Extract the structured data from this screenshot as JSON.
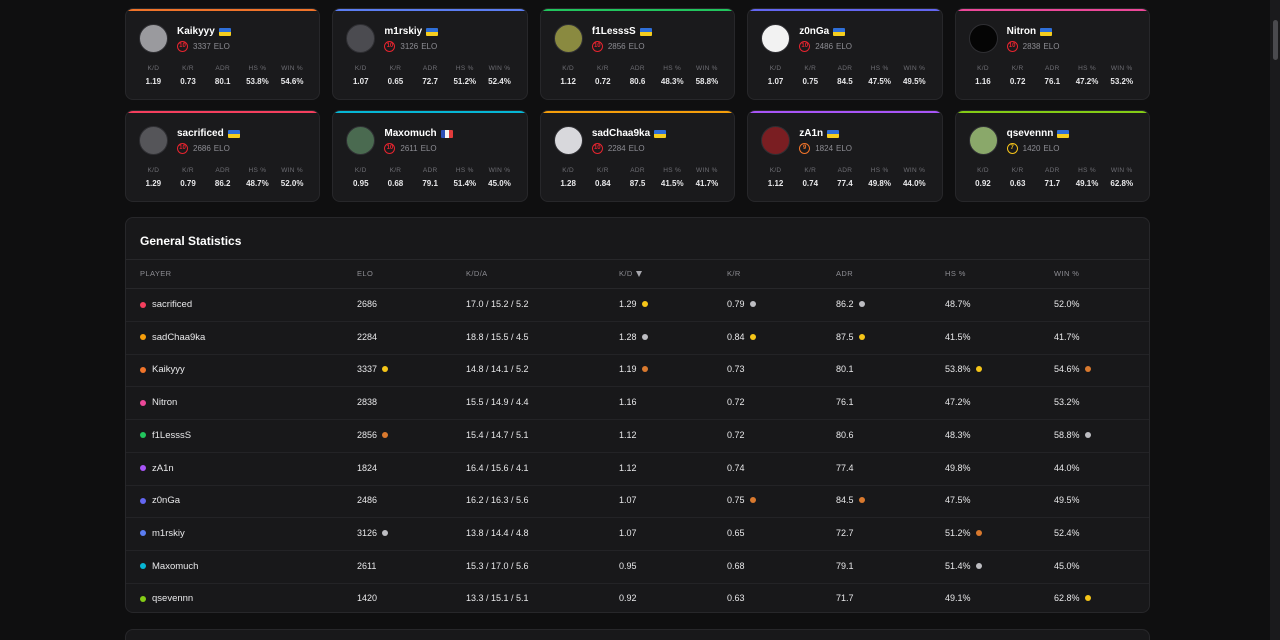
{
  "stat_labels": [
    "K/D",
    "K/R",
    "ADR",
    "HS %",
    "WIN %"
  ],
  "elo_suffix": "ELO",
  "cards": [
    {
      "name": "Kaikyyy",
      "flag": "ua",
      "level": "10",
      "elo": "3337",
      "accent": "#f0742a",
      "avatar_color": "#9a9a9e",
      "kd": "1.19",
      "kr": "0.73",
      "adr": "80.1",
      "hs": "53.8%",
      "win": "54.6%"
    },
    {
      "name": "m1rskiy",
      "flag": "ua",
      "level": "10",
      "elo": "3126",
      "accent": "#5b7df2",
      "avatar_color": "#4b4b50",
      "kd": "1.07",
      "kr": "0.65",
      "adr": "72.7",
      "hs": "51.2%",
      "win": "52.4%"
    },
    {
      "name": "f1LesssS",
      "flag": "ua",
      "level": "10",
      "elo": "2856",
      "accent": "#22c55e",
      "avatar_color": "#8a8a40",
      "kd": "1.12",
      "kr": "0.72",
      "adr": "80.6",
      "hs": "48.3%",
      "win": "58.8%"
    },
    {
      "name": "z0nGa",
      "flag": "ua",
      "level": "10",
      "elo": "2486",
      "accent": "#6366f1",
      "avatar_color": "#f2f2f2",
      "kd": "1.07",
      "kr": "0.75",
      "adr": "84.5",
      "hs": "47.5%",
      "win": "49.5%"
    },
    {
      "name": "Nitron",
      "flag": "ua",
      "level": "10",
      "elo": "2838",
      "accent": "#ec4899",
      "avatar_color": "#050505",
      "kd": "1.16",
      "kr": "0.72",
      "adr": "76.1",
      "hs": "47.2%",
      "win": "53.2%"
    },
    {
      "name": "sacrificed",
      "flag": "ua",
      "level": "10",
      "elo": "2686",
      "accent": "#f43f5e",
      "avatar_color": "#555559",
      "kd": "1.29",
      "kr": "0.79",
      "adr": "86.2",
      "hs": "48.7%",
      "win": "52.0%"
    },
    {
      "name": "Maxomuch",
      "flag": "fr",
      "level": "10",
      "elo": "2611",
      "accent": "#06b6d4",
      "avatar_color": "#4a6a50",
      "kd": "0.95",
      "kr": "0.68",
      "adr": "79.1",
      "hs": "51.4%",
      "win": "45.0%"
    },
    {
      "name": "sadChaa9ka",
      "flag": "ua",
      "level": "10",
      "elo": "2284",
      "accent": "#f59e0b",
      "avatar_color": "#d8d8dc",
      "kd": "1.28",
      "kr": "0.84",
      "adr": "87.5",
      "hs": "41.5%",
      "win": "41.7%"
    },
    {
      "name": "zA1n",
      "flag": "ua",
      "level": "9",
      "elo": "1824",
      "accent": "#a855f7",
      "avatar_color": "#7a1e22",
      "kd": "1.12",
      "kr": "0.74",
      "adr": "77.4",
      "hs": "49.8%",
      "win": "44.0%"
    },
    {
      "name": "qsevennn",
      "flag": "ua",
      "level": "7",
      "elo": "1420",
      "accent": "#84cc16",
      "avatar_color": "#8aa86a",
      "kd": "0.92",
      "kr": "0.63",
      "adr": "71.7",
      "hs": "49.1%",
      "win": "62.8%"
    }
  ],
  "general": {
    "title": "General Statistics",
    "headers": {
      "player": "PLAYER",
      "elo": "ELO",
      "kda": "K/D/A",
      "kd": "K/D",
      "kr": "K/R",
      "adr": "ADR",
      "hs": "HS %",
      "win": "WIN %"
    },
    "rows": [
      {
        "name": "sacrificed",
        "color": "#f43f5e",
        "elo": "2686",
        "kda": "17.0 / 15.2 / 5.2",
        "kd": "1.29",
        "kd_m": "gold",
        "kr": "0.79",
        "kr_m": "silver",
        "adr": "86.2",
        "adr_m": "silver",
        "hs": "48.7%",
        "win": "52.0%"
      },
      {
        "name": "sadChaa9ka",
        "color": "#f59e0b",
        "elo": "2284",
        "kda": "18.8 / 15.5 / 4.5",
        "kd": "1.28",
        "kd_m": "silver",
        "kr": "0.84",
        "kr_m": "gold",
        "adr": "87.5",
        "adr_m": "gold",
        "hs": "41.5%",
        "win": "41.7%"
      },
      {
        "name": "Kaikyyy",
        "color": "#f0742a",
        "elo": "3337",
        "elo_m": "gold",
        "kda": "14.8 / 14.1 / 5.2",
        "kd": "1.19",
        "kd_m": "bronze",
        "kr": "0.73",
        "adr": "80.1",
        "hs": "53.8%",
        "hs_m": "gold",
        "win": "54.6%",
        "win_m": "bronze"
      },
      {
        "name": "Nitron",
        "color": "#ec4899",
        "elo": "2838",
        "kda": "15.5 / 14.9 / 4.4",
        "kd": "1.16",
        "kr": "0.72",
        "adr": "76.1",
        "hs": "47.2%",
        "win": "53.2%"
      },
      {
        "name": "f1LesssS",
        "color": "#22c55e",
        "elo": "2856",
        "elo_m": "bronze",
        "kda": "15.4 / 14.7 / 5.1",
        "kd": "1.12",
        "kr": "0.72",
        "adr": "80.6",
        "hs": "48.3%",
        "win": "58.8%",
        "win_m": "silver"
      },
      {
        "name": "zA1n",
        "color": "#a855f7",
        "elo": "1824",
        "kda": "16.4 / 15.6 / 4.1",
        "kd": "1.12",
        "kr": "0.74",
        "adr": "77.4",
        "hs": "49.8%",
        "win": "44.0%"
      },
      {
        "name": "z0nGa",
        "color": "#6366f1",
        "elo": "2486",
        "kda": "16.2 / 16.3 / 5.6",
        "kd": "1.07",
        "kr": "0.75",
        "kr_m": "bronze",
        "adr": "84.5",
        "adr_m": "bronze",
        "hs": "47.5%",
        "win": "49.5%"
      },
      {
        "name": "m1rskiy",
        "color": "#5b7df2",
        "elo": "3126",
        "elo_m": "silver",
        "kda": "13.8 / 14.4 / 4.8",
        "kd": "1.07",
        "kr": "0.65",
        "adr": "72.7",
        "hs": "51.2%",
        "hs_m": "bronze",
        "win": "52.4%"
      },
      {
        "name": "Maxomuch",
        "color": "#06b6d4",
        "elo": "2611",
        "kda": "15.3 / 17.0 / 5.6",
        "kd": "0.95",
        "kr": "0.68",
        "adr": "79.1",
        "hs": "51.4%",
        "hs_m": "silver",
        "win": "45.0%"
      },
      {
        "name": "qsevennn",
        "color": "#84cc16",
        "elo": "1420",
        "kda": "13.3 / 15.1 / 5.1",
        "kd": "0.92",
        "kr": "0.63",
        "adr": "71.7",
        "hs": "49.1%",
        "win": "62.8%",
        "win_m": "gold"
      }
    ]
  }
}
